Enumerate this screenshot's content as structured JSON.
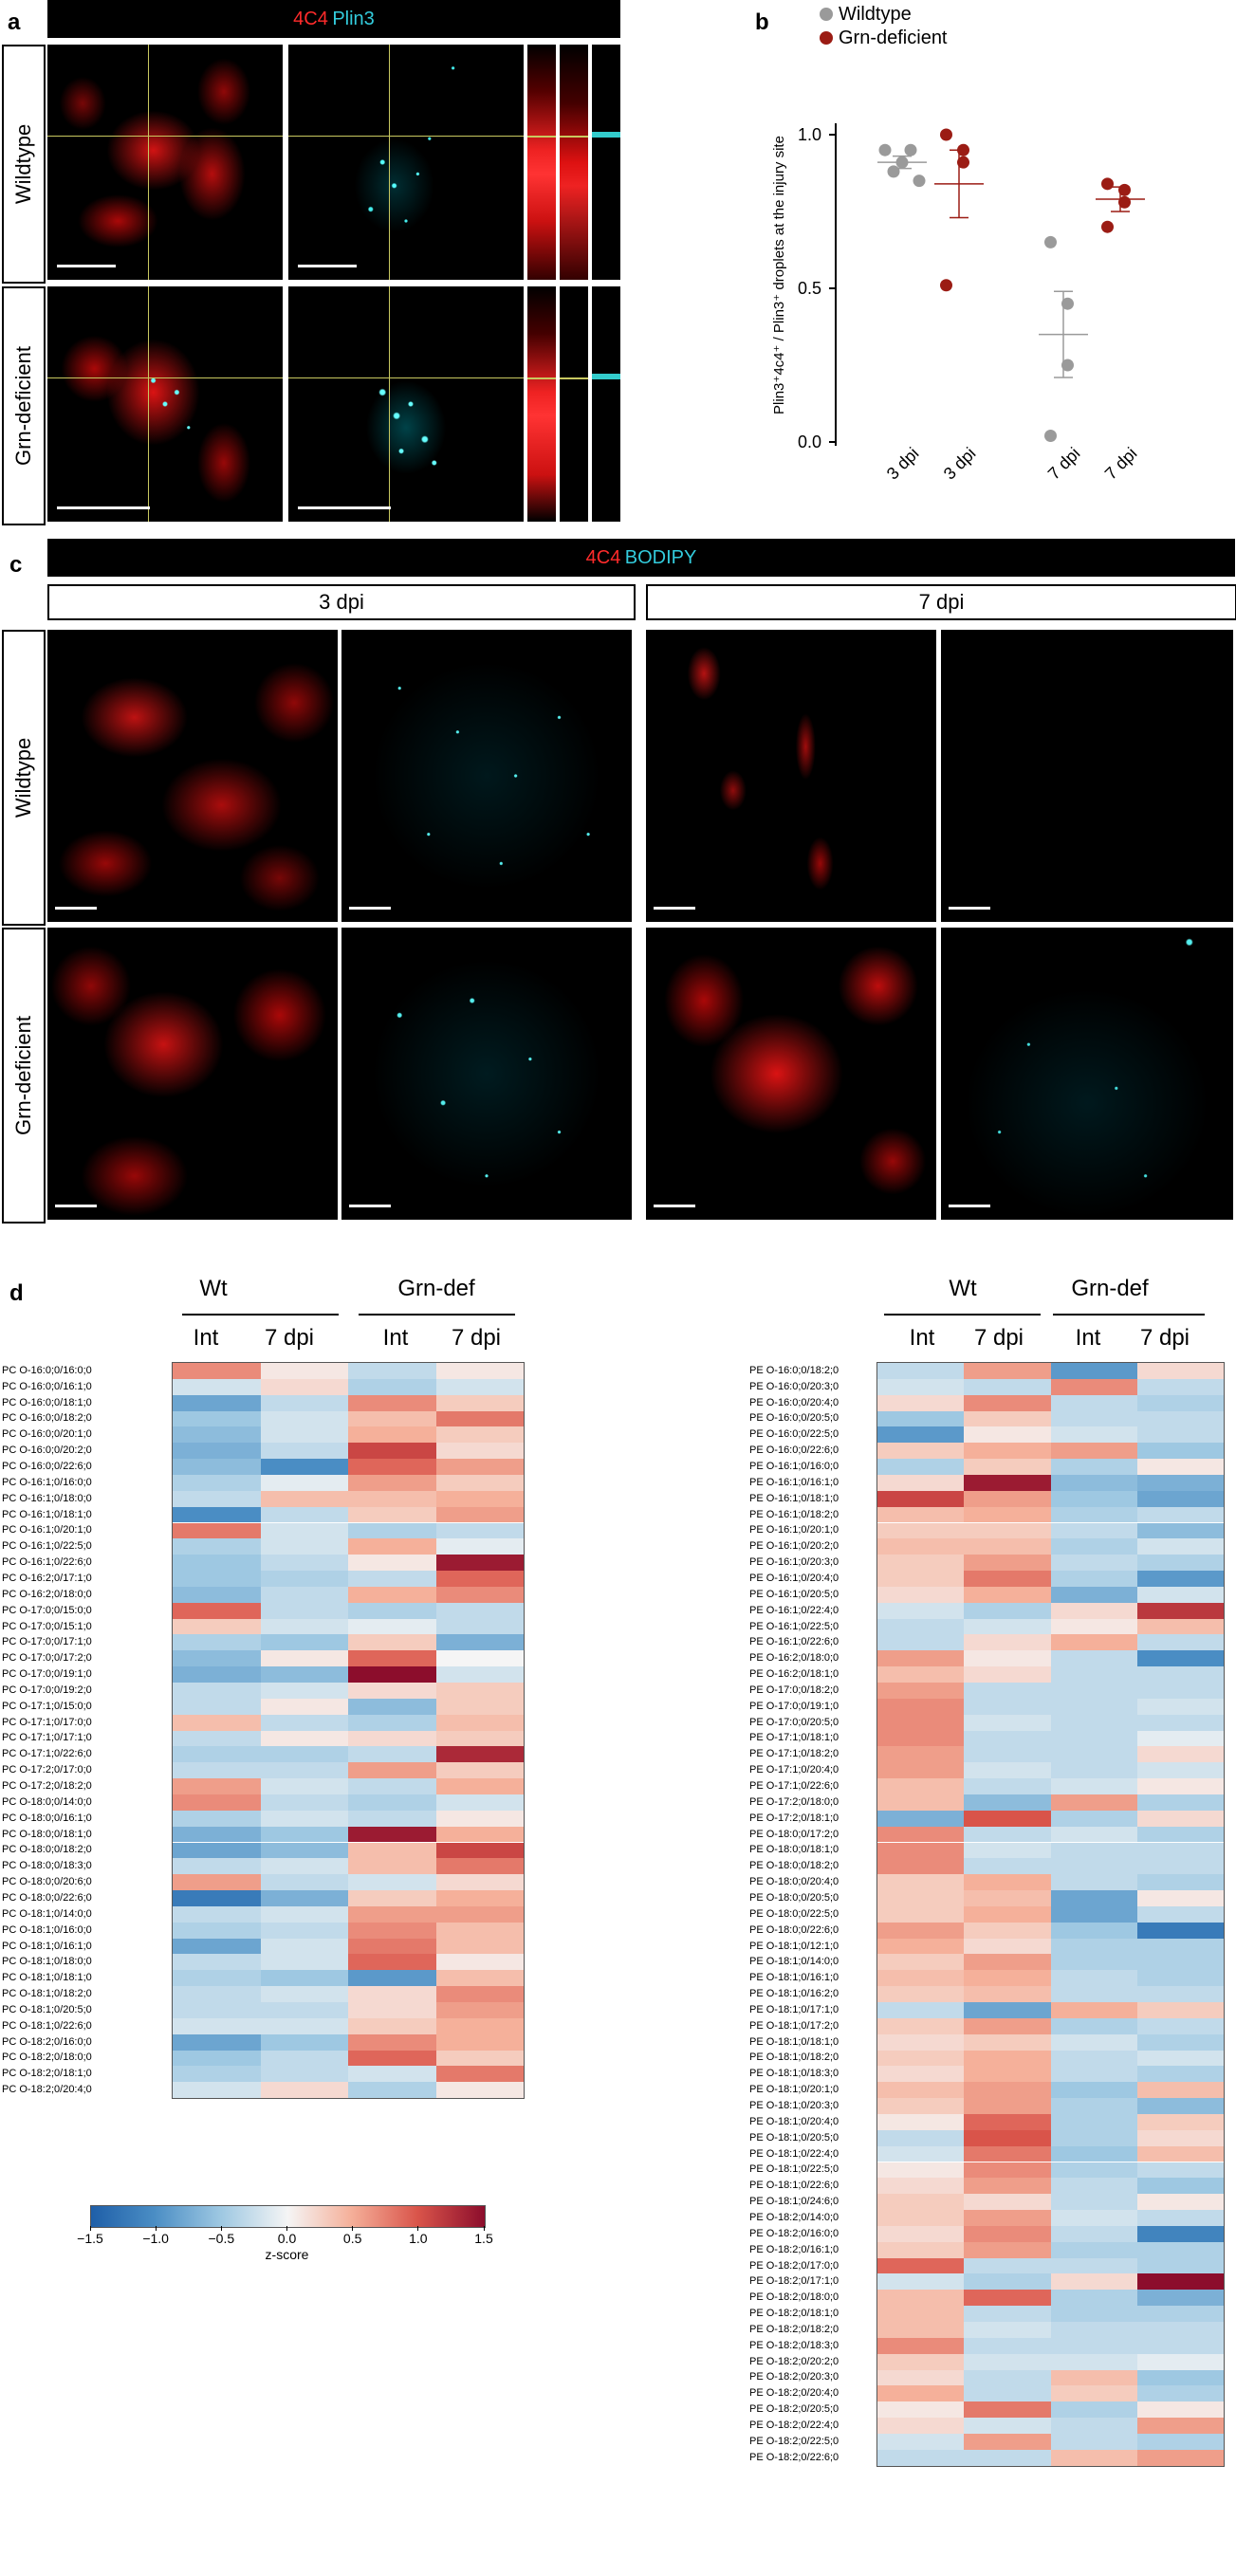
{
  "panel_labels": {
    "a": "a",
    "b": "b",
    "c": "c",
    "d": "d"
  },
  "panel_a": {
    "title_red": "4C4",
    "title_cyan": "Plin3",
    "rows": [
      "Wildtype",
      "Grn-deficient"
    ]
  },
  "panel_b": {
    "legend": [
      "Wildtype",
      "Grn-deficient"
    ],
    "ylabel": "Plin3⁺4c4⁺ / Plin3⁺ droplets at the injury site",
    "yticks": [
      "0.0",
      "0.5",
      "1.0"
    ],
    "xticks": [
      "3 dpi",
      "3 dpi",
      "7 dpi",
      "7 dpi"
    ]
  },
  "panel_c": {
    "title_red": "4C4",
    "title_cyan": "BODIPY",
    "columns": [
      "3 dpi",
      "7 dpi"
    ],
    "rows": [
      "Wildtype",
      "Grn-deficient"
    ]
  },
  "panel_d": {
    "left": {
      "groups": [
        "Wt",
        "Grn-def"
      ],
      "subcols": [
        "Int",
        "7 dpi",
        "Int",
        "7 dpi"
      ]
    },
    "right": {
      "groups": [
        "Wt",
        "Grn-def"
      ],
      "subcols": [
        "Int",
        "7 dpi",
        "Int",
        "7 dpi"
      ]
    },
    "colorbar": {
      "ticks": [
        "−1.5",
        "−1.0",
        "−0.5",
        "0.0",
        "0.5",
        "1.0",
        "1.5"
      ],
      "label": "z-score"
    }
  },
  "chart_data": [
    {
      "type": "scatter",
      "panel": "b",
      "categories": [
        "3 dpi",
        "3 dpi",
        "7 dpi",
        "7 dpi"
      ],
      "ylabel": "Plin3⁺4c4⁺ / Plin3⁺ droplets at the injury site",
      "ylim": [
        0,
        1.0
      ],
      "series": [
        {
          "name": "Wildtype",
          "color": "#9a9a9a",
          "groups": [
            {
              "category_index": 0,
              "points": [
                0.95,
                0.95,
                0.91,
                0.88,
                0.85
              ],
              "mean": 0.91,
              "sem": [
                0.89,
                0.93
              ]
            },
            {
              "category_index": 2,
              "points": [
                0.65,
                0.45,
                0.25,
                0.02
              ],
              "mean": 0.35,
              "sem": [
                0.21,
                0.49
              ]
            }
          ]
        },
        {
          "name": "Grn-deficient",
          "color": "#9b1c14",
          "groups": [
            {
              "category_index": 1,
              "points": [
                1.0,
                0.95,
                0.91,
                0.51
              ],
              "mean": 0.84,
              "sem": [
                0.73,
                0.95
              ]
            },
            {
              "category_index": 3,
              "points": [
                0.84,
                0.82,
                0.78,
                0.7
              ],
              "mean": 0.79,
              "sem": [
                0.75,
                0.83
              ]
            }
          ]
        }
      ]
    },
    {
      "type": "heatmap",
      "panel": "d-left",
      "columns": [
        "Wt Int",
        "Wt 7 dpi",
        "Grn-def Int",
        "Grn-def 7 dpi"
      ],
      "zlim": [
        -1.5,
        1.5
      ],
      "colorbar_label": "z-score",
      "rows": [
        "PC O-16:0;0/16:0;0",
        "PC O-16:0;0/16:1;0",
        "PC O-16:0;0/18:1;0",
        "PC O-16:0;0/18:2;0",
        "PC O-16:0;0/20:1;0",
        "PC O-16:0;0/20:2;0",
        "PC O-16:0;0/22:6;0",
        "PC O-16:1;0/16:0;0",
        "PC O-16:1;0/18:0;0",
        "PC O-16:1;0/18:1;0",
        "PC O-16:1;0/20:1;0",
        "PC O-16:1;0/22:5;0",
        "PC O-16:1;0/22:6;0",
        "PC O-16:2;0/17:1;0",
        "PC O-16:2;0/18:0;0",
        "PC O-17:0;0/15:0;0",
        "PC O-17:0;0/15:1;0",
        "PC O-17:0;0/17:1;0",
        "PC O-17:0;0/17:2;0",
        "PC O-17:0;0/19:1;0",
        "PC O-17:0;0/19:2;0",
        "PC O-17:1;0/15:0;0",
        "PC O-17:1;0/17:0;0",
        "PC O-17:1;0/17:1;0",
        "PC O-17:1;0/22:6;0",
        "PC O-17:2;0/17:0;0",
        "PC O-17:2;0/18:2;0",
        "PC O-18:0;0/14:0;0",
        "PC O-18:0;0/16:1;0",
        "PC O-18:0;0/18:1;0",
        "PC O-18:0;0/18:2;0",
        "PC O-18:0;0/18:3;0",
        "PC O-18:0;0/20:6;0",
        "PC O-18:0;0/22:6;0",
        "PC O-18:1;0/14:0;0",
        "PC O-18:1;0/16:0;0",
        "PC O-18:1;0/16:1;0",
        "PC O-18:1;0/18:0;0",
        "PC O-18:1;0/18:1;0",
        "PC O-18:1;0/18:2;0",
        "PC O-18:1;0/20:5;0",
        "PC O-18:1;0/22:6;0",
        "PC O-18:2;0/16:0;0",
        "PC O-18:2;0/18:0;0",
        "PC O-18:2;0/18:1;0",
        "PC O-18:2;0/20:4;0"
      ],
      "values": [
        [
          0.7,
          0.1,
          -0.3,
          0.1
        ],
        [
          -0.2,
          0.2,
          -0.4,
          -0.2
        ],
        [
          -0.8,
          -0.3,
          0.7,
          0.3
        ],
        [
          -0.5,
          -0.2,
          0.4,
          0.8
        ],
        [
          -0.6,
          -0.2,
          0.5,
          0.3
        ],
        [
          -0.7,
          -0.3,
          1.1,
          0.2
        ],
        [
          -0.6,
          -1.0,
          0.9,
          0.6
        ],
        [
          -0.4,
          -0.1,
          0.6,
          0.3
        ],
        [
          -0.3,
          0.4,
          0.4,
          0.5
        ],
        [
          -1.0,
          -0.3,
          0.3,
          0.6
        ],
        [
          0.8,
          -0.2,
          -0.4,
          -0.3
        ],
        [
          -0.4,
          -0.2,
          0.5,
          -0.1
        ],
        [
          -0.5,
          -0.3,
          0.1,
          1.4
        ],
        [
          -0.5,
          -0.4,
          -0.3,
          0.9
        ],
        [
          -0.6,
          -0.3,
          0.5,
          0.7
        ],
        [
          0.9,
          -0.3,
          -0.4,
          -0.3
        ],
        [
          0.3,
          -0.2,
          -0.1,
          -0.3
        ],
        [
          -0.4,
          -0.5,
          0.3,
          -0.7
        ],
        [
          -0.6,
          0.1,
          0.9,
          0.0
        ],
        [
          -0.7,
          -0.6,
          1.5,
          -0.2
        ],
        [
          -0.3,
          -0.2,
          0.2,
          0.3
        ],
        [
          -0.3,
          0.1,
          -0.6,
          0.3
        ],
        [
          0.4,
          -0.3,
          -0.4,
          0.4
        ],
        [
          -0.3,
          0.1,
          0.2,
          0.3
        ],
        [
          -0.4,
          -0.4,
          -0.3,
          1.3
        ],
        [
          -0.3,
          -0.3,
          0.6,
          0.3
        ],
        [
          0.6,
          -0.2,
          -0.3,
          0.5
        ],
        [
          0.7,
          -0.3,
          -0.4,
          -0.2
        ],
        [
          -0.4,
          -0.2,
          -0.3,
          0.1
        ],
        [
          -0.7,
          -0.5,
          1.4,
          0.5
        ],
        [
          -0.8,
          -0.6,
          0.4,
          1.1
        ],
        [
          -0.3,
          -0.2,
          0.4,
          0.8
        ],
        [
          0.6,
          -0.3,
          -0.2,
          0.2
        ],
        [
          -1.2,
          -0.7,
          0.3,
          0.5
        ],
        [
          -0.3,
          -0.2,
          0.6,
          0.6
        ],
        [
          -0.4,
          -0.3,
          0.7,
          0.4
        ],
        [
          -0.8,
          -0.2,
          0.8,
          0.4
        ],
        [
          -0.3,
          -0.2,
          0.9,
          0.1
        ],
        [
          -0.4,
          -0.5,
          -0.9,
          0.4
        ],
        [
          -0.3,
          -0.2,
          0.2,
          0.7
        ],
        [
          -0.3,
          -0.3,
          0.2,
          0.6
        ],
        [
          -0.2,
          -0.2,
          0.3,
          0.5
        ],
        [
          -0.8,
          -0.5,
          0.7,
          0.5
        ],
        [
          -0.5,
          -0.3,
          0.9,
          0.3
        ],
        [
          -0.4,
          -0.3,
          -0.2,
          0.8
        ],
        [
          -0.2,
          0.2,
          -0.4,
          0.1
        ]
      ]
    },
    {
      "type": "heatmap",
      "panel": "d-right",
      "columns": [
        "Wt Int",
        "Wt 7 dpi",
        "Grn-def Int",
        "Grn-def 7 dpi"
      ],
      "zlim": [
        -1.5,
        1.5
      ],
      "colorbar_label": "z-score",
      "rows": [
        "PE O-16:0;0/18:2;0",
        "PE O-16:0;0/20:3;0",
        "PE O-16:0;0/20:4;0",
        "PE O-16:0;0/20:5;0",
        "PE O-16:0;0/22:5;0",
        "PE O-16:0;0/22:6;0",
        "PE O-16:1;0/16:0;0",
        "PE O-16:1;0/16:1;0",
        "PE O-16:1;0/18:1;0",
        "PE O-16:1;0/18:2;0",
        "PE O-16:1;0/20:1;0",
        "PE O-16:1;0/20:2;0",
        "PE O-16:1;0/20:3;0",
        "PE O-16:1;0/20:4;0",
        "PE O-16:1;0/20:5;0",
        "PE O-16:1;0/22:4;0",
        "PE O-16:1;0/22:5;0",
        "PE O-16:1;0/22:6;0",
        "PE O-16:2;0/18:0;0",
        "PE O-16:2;0/18:1;0",
        "PE O-17:0;0/18:2;0",
        "PE O-17:0;0/19:1;0",
        "PE O-17:0;0/20:5;0",
        "PE O-17:1;0/18:1;0",
        "PE O-17:1;0/18:2;0",
        "PE O-17:1;0/20:4;0",
        "PE O-17:1;0/22:6;0",
        "PE O-17:2;0/18:0;0",
        "PE O-17:2;0/18:1;0",
        "PE O-18:0;0/17:2;0",
        "PE O-18:0;0/18:1;0",
        "PE O-18:0;0/18:2;0",
        "PE O-18:0;0/20:4;0",
        "PE O-18:0;0/20:5;0",
        "PE O-18:0;0/22:5;0",
        "PE O-18:0;0/22:6;0",
        "PE O-18:1;0/12:1;0",
        "PE O-18:1;0/14:0;0",
        "PE O-18:1;0/16:1;0",
        "PE O-18:1;0/16:2;0",
        "PE O-18:1;0/17:1;0",
        "PE O-18:1;0/17:2;0",
        "PE O-18:1;0/18:1;0",
        "PE O-18:1;0/18:2;0",
        "PE O-18:1;0/18:3;0",
        "PE O-18:1;0/20:1;0",
        "PE O-18:1;0/20:3;0",
        "PE O-18:1;0/20:4;0",
        "PE O-18:1;0/20:5;0",
        "PE O-18:1;0/22:4;0",
        "PE O-18:1;0/22:5;0",
        "PE O-18:1;0/22:6;0",
        "PE O-18:1;0/24:6;0",
        "PE O-18:2;0/14:0;0",
        "PE O-18:2;0/16:0;0",
        "PE O-18:2;0/16:1;0",
        "PE O-18:2;0/17:0;0",
        "PE O-18:2;0/17:1;0",
        "PE O-18:2;0/18:0;0",
        "PE O-18:2;0/18:1;0",
        "PE O-18:2;0/18:2;0",
        "PE O-18:2;0/18:3;0",
        "PE O-18:2;0/20:2;0",
        "PE O-18:2;0/20:3;0",
        "PE O-18:2;0/20:4;0",
        "PE O-18:2;0/20:5;0",
        "PE O-18:2;0/22:4;0",
        "PE O-18:2;0/22:5;0",
        "PE O-18:2;0/22:6;0"
      ],
      "values": [
        [
          -0.3,
          0.6,
          -0.9,
          0.2
        ],
        [
          -0.2,
          -0.3,
          0.7,
          -0.3
        ],
        [
          0.2,
          0.7,
          -0.3,
          -0.4
        ],
        [
          -0.5,
          0.3,
          -0.3,
          -0.3
        ],
        [
          -0.9,
          0.1,
          -0.2,
          -0.3
        ],
        [
          0.3,
          0.5,
          0.6,
          -0.5
        ],
        [
          -0.4,
          0.3,
          -0.4,
          0.1
        ],
        [
          0.2,
          1.4,
          -0.6,
          -0.7
        ],
        [
          1.1,
          0.6,
          -0.5,
          -0.8
        ],
        [
          0.4,
          0.5,
          -0.4,
          -0.3
        ],
        [
          0.3,
          0.3,
          -0.3,
          -0.6
        ],
        [
          0.4,
          0.4,
          -0.4,
          -0.2
        ],
        [
          0.3,
          0.6,
          -0.3,
          -0.4
        ],
        [
          0.3,
          0.8,
          -0.4,
          -0.9
        ],
        [
          0.2,
          0.5,
          -0.7,
          -0.2
        ],
        [
          -0.2,
          -0.4,
          0.2,
          1.2
        ],
        [
          -0.3,
          -0.2,
          0.1,
          0.4
        ],
        [
          -0.3,
          0.2,
          0.5,
          -0.3
        ],
        [
          0.6,
          0.1,
          -0.3,
          -1.0
        ],
        [
          0.4,
          0.2,
          -0.3,
          -0.3
        ],
        [
          0.6,
          -0.3,
          -0.3,
          -0.3
        ],
        [
          0.7,
          -0.3,
          -0.3,
          -0.2
        ],
        [
          0.7,
          -0.2,
          -0.3,
          -0.3
        ],
        [
          0.7,
          -0.3,
          -0.3,
          -0.1
        ],
        [
          0.6,
          -0.3,
          -0.3,
          0.2
        ],
        [
          0.6,
          -0.2,
          -0.3,
          -0.2
        ],
        [
          0.4,
          -0.3,
          -0.2,
          0.1
        ],
        [
          0.4,
          -0.6,
          0.6,
          -0.4
        ],
        [
          -0.7,
          1.0,
          -0.4,
          0.2
        ],
        [
          0.7,
          -0.3,
          -0.2,
          -0.4
        ],
        [
          0.7,
          -0.2,
          -0.3,
          -0.3
        ],
        [
          0.7,
          -0.3,
          -0.3,
          -0.3
        ],
        [
          0.3,
          0.5,
          -0.3,
          -0.4
        ],
        [
          0.3,
          0.4,
          -0.8,
          0.1
        ],
        [
          0.3,
          0.5,
          -0.8,
          -0.3
        ],
        [
          0.6,
          0.3,
          -0.5,
          -1.2
        ],
        [
          0.5,
          0.2,
          -0.4,
          -0.4
        ],
        [
          0.3,
          0.6,
          -0.4,
          -0.4
        ],
        [
          0.4,
          0.5,
          -0.3,
          -0.4
        ],
        [
          0.3,
          0.4,
          -0.3,
          -0.3
        ],
        [
          -0.3,
          -0.8,
          0.5,
          0.3
        ],
        [
          0.3,
          0.6,
          -0.4,
          -0.3
        ],
        [
          0.2,
          0.3,
          -0.2,
          -0.4
        ],
        [
          0.3,
          0.5,
          -0.3,
          -0.2
        ],
        [
          0.2,
          0.5,
          -0.3,
          -0.4
        ],
        [
          0.4,
          0.6,
          -0.5,
          0.4
        ],
        [
          0.3,
          0.6,
          -0.4,
          -0.6
        ],
        [
          0.1,
          0.9,
          -0.4,
          0.3
        ],
        [
          -0.3,
          1.0,
          -0.4,
          0.2
        ],
        [
          -0.2,
          0.8,
          -0.5,
          0.4
        ],
        [
          0.1,
          0.7,
          -0.4,
          -0.3
        ],
        [
          0.2,
          0.6,
          -0.3,
          -0.5
        ],
        [
          0.3,
          0.2,
          -0.3,
          0.1
        ],
        [
          0.3,
          0.6,
          -0.2,
          -0.3
        ],
        [
          0.2,
          0.7,
          -0.3,
          -1.1
        ],
        [
          0.3,
          0.6,
          -0.4,
          -0.4
        ],
        [
          0.9,
          -0.3,
          -0.3,
          -0.4
        ],
        [
          -0.2,
          -0.4,
          0.2,
          1.5
        ],
        [
          0.4,
          0.9,
          -0.4,
          -0.7
        ],
        [
          0.4,
          -0.3,
          -0.4,
          -0.4
        ],
        [
          0.4,
          -0.2,
          -0.3,
          -0.3
        ],
        [
          0.7,
          -0.3,
          -0.3,
          -0.3
        ],
        [
          0.3,
          -0.2,
          -0.2,
          -0.1
        ],
        [
          0.2,
          -0.3,
          0.4,
          -0.5
        ],
        [
          0.5,
          -0.3,
          0.3,
          -0.4
        ],
        [
          0.1,
          0.8,
          -0.4,
          0.1
        ],
        [
          0.2,
          -0.2,
          -0.3,
          0.6
        ],
        [
          -0.2,
          0.6,
          -0.3,
          -0.4
        ],
        [
          -0.3,
          -0.3,
          0.4,
          0.6
        ]
      ]
    }
  ]
}
